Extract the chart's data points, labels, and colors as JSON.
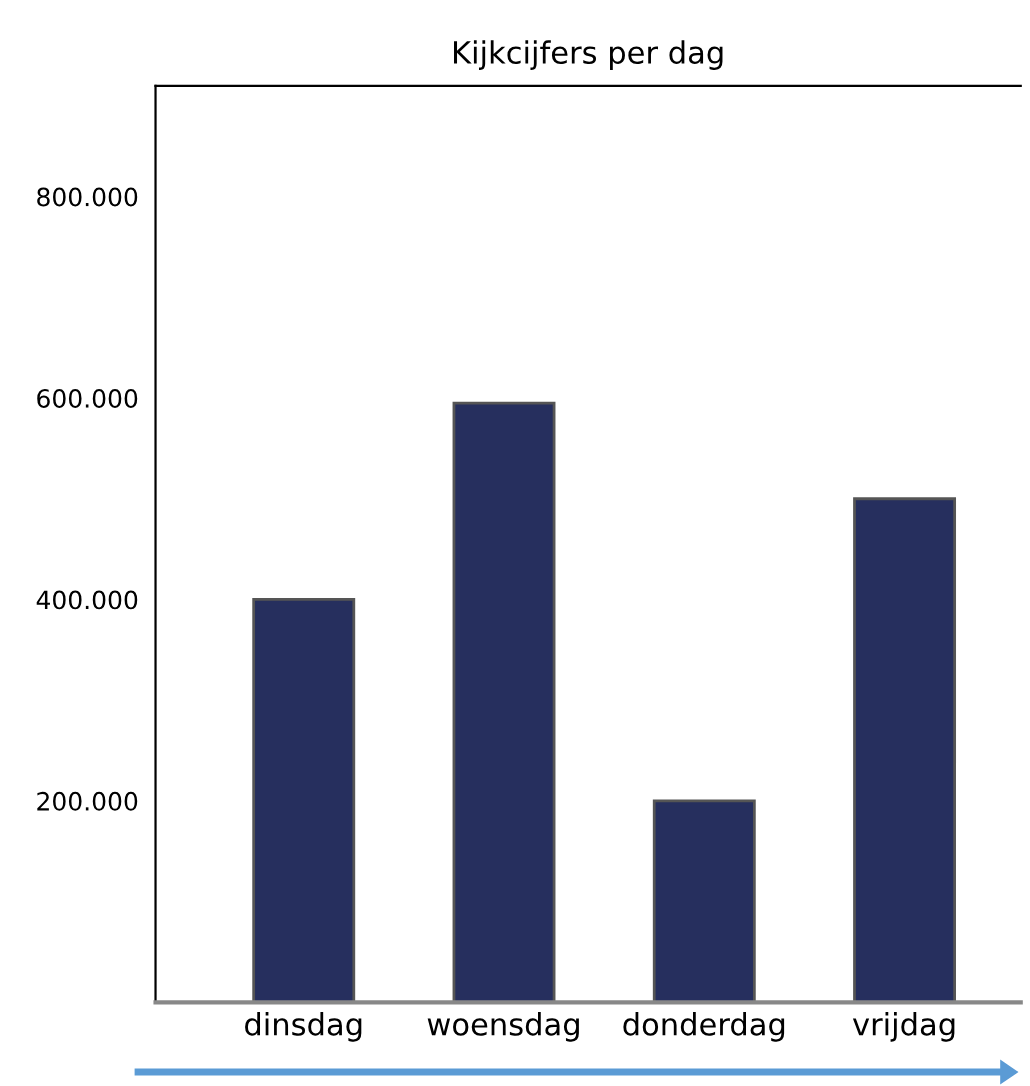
{
  "chart_data": {
    "type": "bar",
    "title": "Kijkcijfers per dag",
    "categories": [
      "dinsdag",
      "woensdag",
      "donderdag",
      "vrijdag"
    ],
    "values": [
      400000,
      595000,
      200000,
      500000
    ],
    "color": "#262f5e",
    "ylim": [
      0,
      910000
    ],
    "yticks": [
      {
        "value": 200000,
        "label": "200.000"
      },
      {
        "value": 400000,
        "label": "400.000"
      },
      {
        "value": 600000,
        "label": "600.000"
      },
      {
        "value": 800000,
        "label": "800.000"
      }
    ],
    "grid": false,
    "legend": false
  }
}
